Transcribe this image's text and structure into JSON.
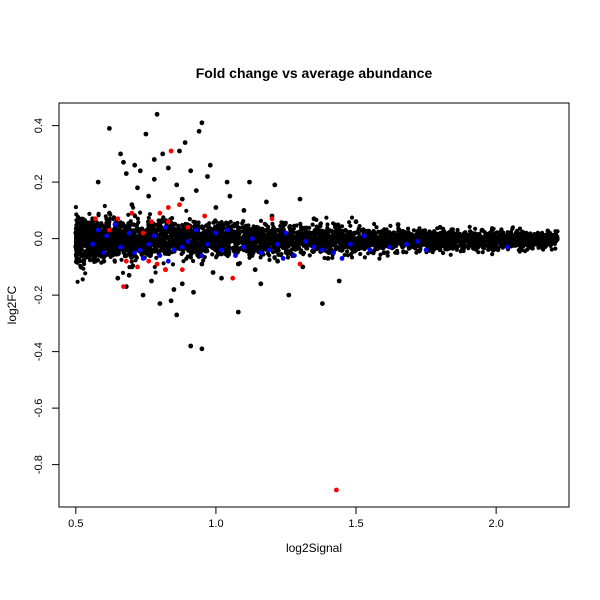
{
  "chart_data": {
    "type": "scatter",
    "title": "Fold change vs average abundance",
    "xlabel": "log2Signal",
    "ylabel": "log2FC",
    "xlim": [
      0.44,
      2.26
    ],
    "ylim": [
      -0.95,
      0.48
    ],
    "xticks": [
      0.5,
      1.0,
      1.5,
      2.0
    ],
    "xtick_labels": [
      "0.5",
      "1.0",
      "1.5",
      "2.0"
    ],
    "yticks": [
      0.4,
      0.2,
      0.0,
      -0.2,
      -0.4,
      -0.6,
      -0.8
    ],
    "ytick_labels": [
      "0.4",
      "0.2",
      "0.0",
      "-0.2",
      "-0.4",
      "-0.6",
      "-0.8"
    ],
    "grid": false,
    "legend": "none",
    "series": [
      {
        "color": "#000000",
        "points": [
          [
            0.62,
            0.39
          ],
          [
            0.79,
            0.44
          ],
          [
            0.95,
            0.41
          ],
          [
            0.94,
            0.38
          ],
          [
            0.75,
            0.37
          ],
          [
            0.87,
            0.31
          ],
          [
            0.89,
            0.34
          ],
          [
            0.71,
            0.26
          ],
          [
            0.66,
            0.3
          ],
          [
            0.78,
            0.28
          ],
          [
            0.91,
            0.24
          ],
          [
            0.98,
            0.26
          ],
          [
            1.04,
            0.2
          ],
          [
            1.21,
            0.19
          ],
          [
            0.58,
            0.2
          ],
          [
            0.68,
            0.23
          ],
          [
            0.83,
            0.25
          ],
          [
            1.12,
            0.2
          ],
          [
            0.72,
            0.18
          ],
          [
            1.3,
            0.14
          ],
          [
            0.84,
            -0.22
          ],
          [
            0.86,
            -0.27
          ],
          [
            0.91,
            -0.38
          ],
          [
            0.95,
            -0.39
          ],
          [
            1.08,
            -0.26
          ],
          [
            1.26,
            -0.2
          ],
          [
            1.38,
            -0.23
          ],
          [
            0.68,
            -0.17
          ],
          [
            0.74,
            -0.2
          ],
          [
            0.8,
            -0.23
          ],
          [
            1.44,
            -0.15
          ],
          [
            0.65,
            -0.14
          ],
          [
            1.16,
            -0.16
          ],
          [
            1.02,
            -0.14
          ],
          [
            0.56,
            0.07
          ],
          [
            0.62,
            0.09
          ],
          [
            0.7,
            0.12
          ],
          [
            0.76,
            0.15
          ],
          [
            0.88,
            0.14
          ],
          [
            1.0,
            0.11
          ],
          [
            1.1,
            0.1
          ],
          [
            1.2,
            0.08
          ],
          [
            1.35,
            0.07
          ],
          [
            1.5,
            0.06
          ],
          [
            1.65,
            0.05
          ],
          [
            1.8,
            0.04
          ],
          [
            1.95,
            0.03
          ],
          [
            2.1,
            0.02
          ],
          [
            2.2,
            0.0
          ],
          [
            0.5,
            0.02
          ],
          [
            0.5,
            -0.03
          ],
          [
            0.55,
            -0.06
          ],
          [
            0.6,
            -0.08
          ],
          [
            0.7,
            -0.1
          ],
          [
            0.82,
            -0.11
          ],
          [
            0.95,
            -0.09
          ],
          [
            1.08,
            -0.09
          ],
          [
            1.22,
            -0.08
          ],
          [
            1.4,
            -0.07
          ],
          [
            1.6,
            -0.05
          ],
          [
            1.8,
            -0.04
          ],
          [
            2.0,
            -0.03
          ],
          [
            2.15,
            -0.02
          ],
          [
            0.78,
            0.21
          ],
          [
            0.73,
            0.24
          ],
          [
            0.86,
            0.19
          ],
          [
            0.93,
            0.17
          ],
          [
            1.05,
            0.15
          ],
          [
            1.18,
            0.13
          ],
          [
            0.69,
            -0.13
          ],
          [
            0.77,
            -0.15
          ],
          [
            0.88,
            -0.16
          ],
          [
            0.99,
            -0.12
          ],
          [
            1.14,
            -0.11
          ],
          [
            1.31,
            -0.1
          ],
          [
            0.81,
            0.3
          ],
          [
            0.67,
            0.27
          ],
          [
            0.97,
            0.22
          ],
          [
            0.92,
            -0.19
          ],
          [
            0.85,
            -0.18
          ]
        ]
      },
      {
        "color": "#0000ff",
        "points": [
          [
            0.56,
            -0.02
          ],
          [
            0.61,
            0.01
          ],
          [
            0.66,
            -0.03
          ],
          [
            0.71,
            -0.05
          ],
          [
            0.76,
            -0.02
          ],
          [
            0.8,
            -0.06
          ],
          [
            0.85,
            -0.04
          ],
          [
            0.9,
            -0.01
          ],
          [
            0.97,
            -0.02
          ],
          [
            1.02,
            -0.04
          ],
          [
            1.1,
            -0.03
          ],
          [
            1.16,
            -0.05
          ],
          [
            1.22,
            -0.02
          ],
          [
            1.28,
            -0.06
          ],
          [
            1.35,
            -0.03
          ],
          [
            1.42,
            -0.05
          ],
          [
            1.48,
            -0.02
          ],
          [
            1.55,
            -0.04
          ],
          [
            1.68,
            -0.02
          ],
          [
            1.75,
            -0.04
          ],
          [
            2.04,
            -0.03
          ],
          [
            0.58,
            0.03
          ],
          [
            0.64,
            0.05
          ],
          [
            0.69,
            0.02
          ],
          [
            0.73,
            -0.04
          ],
          [
            0.78,
            0.01
          ],
          [
            0.83,
            -0.08
          ],
          [
            0.88,
            -0.03
          ],
          [
            0.93,
            0.03
          ],
          [
            1.0,
            0.02
          ],
          [
            1.07,
            -0.06
          ],
          [
            1.13,
            0.0
          ],
          [
            1.19,
            -0.04
          ],
          [
            1.25,
            0.02
          ],
          [
            1.32,
            -0.01
          ],
          [
            1.38,
            -0.04
          ],
          [
            1.45,
            -0.07
          ],
          [
            1.53,
            0.01
          ],
          [
            1.62,
            -0.03
          ],
          [
            1.72,
            -0.01
          ],
          [
            0.6,
            -0.05
          ],
          [
            0.74,
            -0.07
          ],
          [
            0.82,
            0.04
          ],
          [
            0.95,
            -0.06
          ],
          [
            1.04,
            0.03
          ],
          [
            1.24,
            -0.07
          ]
        ]
      },
      {
        "color": "#ff0000",
        "points": [
          [
            1.43,
            -0.89
          ],
          [
            0.84,
            0.31
          ],
          [
            0.87,
            0.12
          ],
          [
            0.83,
            0.11
          ],
          [
            0.8,
            0.09
          ],
          [
            0.77,
            0.06
          ],
          [
            0.7,
            0.09
          ],
          [
            0.65,
            0.07
          ],
          [
            0.57,
            0.07
          ],
          [
            0.62,
            0.03
          ],
          [
            0.83,
            0.06
          ],
          [
            1.2,
            0.07
          ],
          [
            0.68,
            -0.08
          ],
          [
            0.72,
            -0.1
          ],
          [
            0.76,
            -0.08
          ],
          [
            0.79,
            -0.09
          ],
          [
            0.82,
            -0.11
          ],
          [
            0.88,
            -0.11
          ],
          [
            1.06,
            -0.14
          ],
          [
            1.3,
            -0.09
          ],
          [
            0.67,
            -0.17
          ],
          [
            0.74,
            0.02
          ],
          [
            0.9,
            0.04
          ],
          [
            0.96,
            0.08
          ]
        ]
      }
    ]
  }
}
